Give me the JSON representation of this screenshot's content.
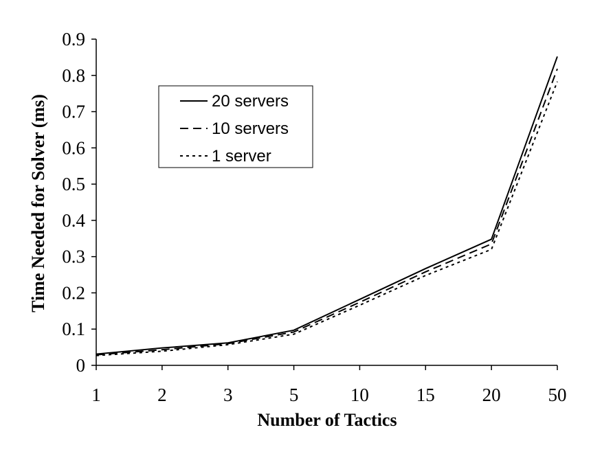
{
  "chart_data": {
    "type": "line",
    "categories": [
      "1",
      "2",
      "3",
      "5",
      "10",
      "15",
      "20",
      "50"
    ],
    "ylim": [
      0,
      0.9
    ],
    "yticks": [
      "0",
      "0.1",
      "0.2",
      "0.3",
      "0.4",
      "0.5",
      "0.6",
      "0.7",
      "0.8",
      "0.9"
    ],
    "xlabel": "Number of Tactics",
    "ylabel": "Time Needed for Solver (ms)",
    "grid": false,
    "legend_position": "upper-left",
    "series": [
      {
        "name": "20 servers",
        "style": "solid",
        "values": [
          0.031,
          0.048,
          0.062,
          0.097,
          0.182,
          0.267,
          0.348,
          0.852
        ]
      },
      {
        "name": "10 servers",
        "style": "dashed",
        "values": [
          0.029,
          0.043,
          0.06,
          0.092,
          0.174,
          0.258,
          0.335,
          0.818
        ]
      },
      {
        "name": "1 server",
        "style": "dotted",
        "values": [
          0.027,
          0.039,
          0.057,
          0.086,
          0.166,
          0.248,
          0.32,
          0.783
        ]
      }
    ]
  }
}
